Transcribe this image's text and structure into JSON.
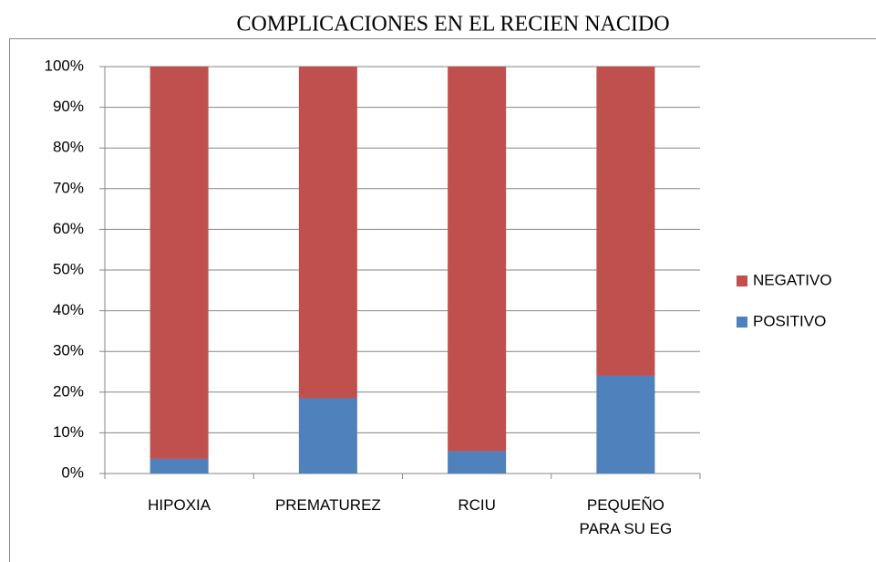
{
  "chart_data": {
    "type": "stacked-bar",
    "title": "COMPLICACIONES EN EL RECIEN NACIDO",
    "categories": [
      "HIPOXIA",
      "PREMATUREZ",
      "RCIU",
      "PEQUEÑO PARA SU EG"
    ],
    "series": [
      {
        "name": "POSITIVO",
        "color": "#4f81bd",
        "values": [
          3.6,
          18.5,
          5.5,
          24
        ]
      },
      {
        "name": "NEGATIVO",
        "color": "#c0504d",
        "values": [
          96.4,
          81.5,
          94.5,
          76
        ]
      }
    ],
    "ylim": [
      0,
      100
    ],
    "yticks": [
      {
        "value": 0,
        "label": "0%"
      },
      {
        "value": 10,
        "label": "10%"
      },
      {
        "value": 20,
        "label": "20%"
      },
      {
        "value": 30,
        "label": "30%"
      },
      {
        "value": 40,
        "label": "40%"
      },
      {
        "value": 50,
        "label": "50%"
      },
      {
        "value": 60,
        "label": "60%"
      },
      {
        "value": 70,
        "label": "70%"
      },
      {
        "value": 80,
        "label": "80%"
      },
      {
        "value": 90,
        "label": "90%"
      },
      {
        "value": 100,
        "label": "100%"
      }
    ],
    "grid": true,
    "legend": "right"
  }
}
